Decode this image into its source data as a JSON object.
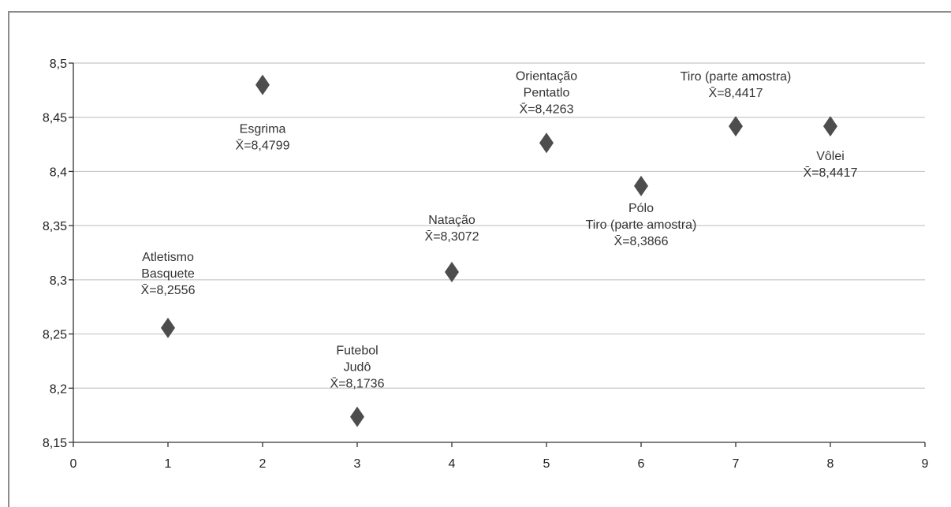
{
  "chart_data": {
    "type": "scatter",
    "title": "",
    "xlabel": "",
    "ylabel": "",
    "xlim": [
      0,
      9
    ],
    "ylim": [
      8.15,
      8.5
    ],
    "x_ticks": [
      0,
      1,
      2,
      3,
      4,
      5,
      6,
      7,
      8,
      9
    ],
    "x_tick_labels": [
      "0",
      "1",
      "2",
      "3",
      "4",
      "5",
      "6",
      "7",
      "8",
      "9"
    ],
    "y_ticks": [
      8.15,
      8.2,
      8.25,
      8.3,
      8.35,
      8.4,
      8.45,
      8.5
    ],
    "y_tick_labels": [
      "8,15",
      "8,2",
      "8,25",
      "8,3",
      "8,35",
      "8,4",
      "8,45",
      "8,5"
    ],
    "grid": "horizontal",
    "marker": "diamond",
    "marker_color": "#4d4d4d",
    "points": [
      {
        "x": 1,
        "y": 8.2556,
        "label_lines": [
          "Atletismo",
          "Basquete"
        ],
        "mean_label": "X̄=8,2556"
      },
      {
        "x": 2,
        "y": 8.4799,
        "label_lines": [
          "Esgrima"
        ],
        "mean_label": "X̄=8,4799"
      },
      {
        "x": 3,
        "y": 8.1736,
        "label_lines": [
          "Futebol",
          "Judô"
        ],
        "mean_label": "X̄=8,1736"
      },
      {
        "x": 4,
        "y": 8.3072,
        "label_lines": [
          "Natação"
        ],
        "mean_label": "X̄=8,3072"
      },
      {
        "x": 5,
        "y": 8.4263,
        "label_lines": [
          "Orientação",
          "Pentatlo"
        ],
        "mean_label": "X̄=8,4263"
      },
      {
        "x": 6,
        "y": 8.3866,
        "label_lines": [
          "Pólo",
          "Tiro (parte amostra)"
        ],
        "mean_label": "X̄=8,3866"
      },
      {
        "x": 7,
        "y": 8.4417,
        "label_lines": [
          "Tiro (parte amostra)"
        ],
        "mean_label": "X̄=8,4417"
      },
      {
        "x": 8,
        "y": 8.4417,
        "label_lines": [
          "Vôlei"
        ],
        "mean_label": "X̄=8,4417"
      }
    ]
  }
}
